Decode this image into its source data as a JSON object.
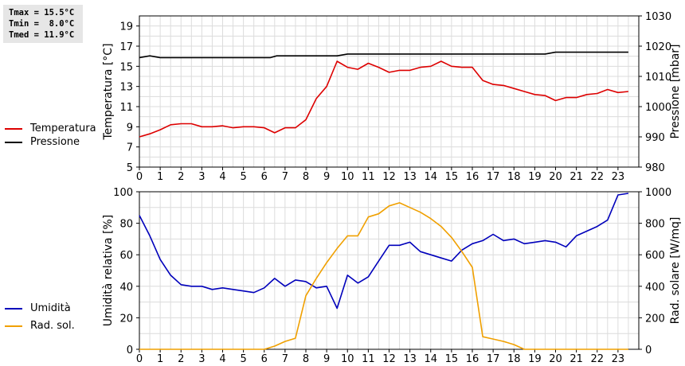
{
  "stats": {
    "tmax": "Tmax = 15.5°C",
    "tmin": "Tmin =  8.0°C",
    "tmed": "Tmed = 11.9°C"
  },
  "legend_top": [
    {
      "label": "Temperatura",
      "color": "#dd0000"
    },
    {
      "label": "Pressione",
      "color": "#000000"
    }
  ],
  "legend_bottom": [
    {
      "label": "Umidità",
      "color": "#0000bb"
    },
    {
      "label": "Rad. sol.",
      "color": "#f0a000"
    }
  ],
  "chart_data": [
    {
      "type": "line",
      "xlim": [
        0,
        24
      ],
      "x_ticks": [
        0,
        1,
        2,
        3,
        4,
        5,
        6,
        7,
        8,
        9,
        10,
        11,
        12,
        13,
        14,
        15,
        16,
        17,
        18,
        19,
        20,
        21,
        22,
        23
      ],
      "ylabel": "Temperatura [°C]",
      "ylim": [
        5,
        20
      ],
      "y_ticks": [
        5,
        7,
        9,
        11,
        13,
        15,
        17,
        19
      ],
      "y2label": "Pressione [mbar]",
      "y2lim": [
        980,
        1030
      ],
      "y2_ticks": [
        980,
        990,
        1000,
        1010,
        1020,
        1030
      ],
      "grid": true,
      "series": [
        {
          "name": "Temperatura",
          "axis": "left",
          "color": "#dd0000",
          "x": [
            0,
            0.5,
            1,
            1.5,
            2,
            2.5,
            3,
            3.5,
            4,
            4.5,
            5,
            5.5,
            6,
            6.5,
            7,
            7.5,
            8,
            8.5,
            9,
            9.5,
            10,
            10.5,
            11,
            11.5,
            12,
            12.5,
            13,
            13.5,
            14,
            14.5,
            15,
            15.5,
            16,
            16.5,
            17,
            17.5,
            18,
            18.5,
            19,
            19.5,
            20,
            20.5,
            21,
            21.5,
            22,
            22.5,
            23,
            23.5
          ],
          "y": [
            8.0,
            8.3,
            8.7,
            9.2,
            9.3,
            9.3,
            9.0,
            9.0,
            9.1,
            8.9,
            9.0,
            9.0,
            8.9,
            8.4,
            8.9,
            8.9,
            9.7,
            11.8,
            13.0,
            15.5,
            14.9,
            14.7,
            15.3,
            14.9,
            14.4,
            14.6,
            14.6,
            14.9,
            15.0,
            15.5,
            15.0,
            14.9,
            14.9,
            13.6,
            13.2,
            13.1,
            12.8,
            12.5,
            12.2,
            12.1,
            11.6,
            11.9,
            11.9,
            12.2,
            12.3,
            12.7,
            12.4,
            12.5
          ]
        },
        {
          "name": "Pressione",
          "axis": "right",
          "color": "#000000",
          "x": [
            0,
            0.5,
            1,
            6.3,
            6.6,
            9.5,
            10,
            19.5,
            20,
            23.5
          ],
          "y": [
            1016.2,
            1016.8,
            1016.2,
            1016.2,
            1016.8,
            1016.8,
            1017.4,
            1017.4,
            1018.0,
            1018.0
          ]
        }
      ]
    },
    {
      "type": "line",
      "xlim": [
        0,
        24
      ],
      "x_ticks": [
        0,
        1,
        2,
        3,
        4,
        5,
        6,
        7,
        8,
        9,
        10,
        11,
        12,
        13,
        14,
        15,
        16,
        17,
        18,
        19,
        20,
        21,
        22,
        23
      ],
      "ylabel": "Umidità relativa [%]",
      "ylim": [
        0,
        100
      ],
      "y_ticks": [
        0,
        20,
        40,
        60,
        80,
        100
      ],
      "y2label": "Rad. solare [W/mq]",
      "y2lim": [
        0,
        1000
      ],
      "y2_ticks": [
        0,
        200,
        400,
        600,
        800,
        1000
      ],
      "grid": true,
      "series": [
        {
          "name": "Umidità",
          "axis": "left",
          "color": "#0000bb",
          "x": [
            0,
            0.5,
            1,
            1.5,
            2,
            2.5,
            3,
            3.5,
            4,
            4.5,
            5,
            5.5,
            6,
            6.5,
            7,
            7.5,
            8,
            8.5,
            9,
            9.5,
            10,
            10.5,
            11,
            11.5,
            12,
            12.5,
            13,
            13.5,
            14,
            14.5,
            15,
            15.5,
            16,
            16.5,
            17,
            17.5,
            18,
            18.5,
            19,
            19.5,
            20,
            20.5,
            21,
            21.5,
            22,
            22.5,
            23,
            23.5
          ],
          "y": [
            85,
            72,
            57,
            47,
            41,
            40,
            40,
            38,
            39,
            38,
            37,
            36,
            39,
            45,
            40,
            44,
            43,
            39,
            40,
            26,
            47,
            42,
            46,
            56,
            66,
            66,
            68,
            62,
            60,
            58,
            56,
            63,
            67,
            69,
            73,
            69,
            70,
            67,
            68,
            69,
            68,
            65,
            72,
            75,
            78,
            82,
            98,
            99
          ]
        },
        {
          "name": "Rad. sol.",
          "axis": "right",
          "color": "#f0a000",
          "x": [
            0,
            1,
            2,
            3,
            4,
            5,
            6,
            6.5,
            7,
            7.5,
            8,
            8.5,
            9,
            9.5,
            10,
            10.5,
            11,
            11.5,
            12,
            12.5,
            13,
            13.5,
            14,
            14.5,
            15,
            15.5,
            16,
            16.5,
            17,
            17.5,
            18,
            18.5,
            19,
            20,
            21,
            22,
            23,
            23.5
          ],
          "y": [
            0,
            0,
            0,
            0,
            0,
            0,
            0,
            20,
            50,
            70,
            340,
            450,
            550,
            640,
            720,
            720,
            840,
            860,
            910,
            930,
            900,
            870,
            830,
            780,
            710,
            620,
            520,
            80,
            65,
            50,
            30,
            0,
            0,
            0,
            0,
            0,
            0,
            0
          ]
        }
      ]
    }
  ]
}
